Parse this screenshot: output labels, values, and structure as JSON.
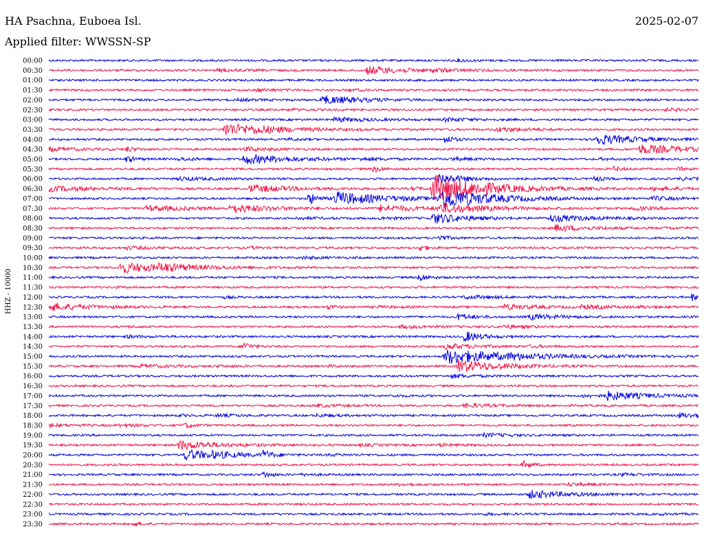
{
  "header": {
    "station": "HA Psachna, Euboea Isl.",
    "date": "2025-02-07",
    "filter_label": "Applied filter: WWSSN-SP"
  },
  "chart_data": {
    "type": "line",
    "title": "HA Psachna, Euboea Isl.",
    "ylabel": "HHZ - 10000",
    "xlabel": "",
    "trace_colors": [
      "#0000dd",
      "#ee1144"
    ],
    "traces": [
      {
        "label": "00:00",
        "events": [
          [
            0.63,
            0.5,
            0.2
          ]
        ]
      },
      {
        "label": "00:30",
        "events": [
          [
            0.49,
            1.8,
            0.5
          ],
          [
            0.26,
            0.6,
            0.3
          ],
          [
            0.59,
            0.5,
            0.3
          ]
        ]
      },
      {
        "label": "01:00",
        "events": []
      },
      {
        "label": "01:30",
        "events": [
          [
            0.32,
            0.5,
            0.3
          ],
          [
            0.46,
            0.4,
            0.2
          ]
        ]
      },
      {
        "label": "02:00",
        "events": [
          [
            0.42,
            2.0,
            0.5
          ],
          [
            0.29,
            0.4,
            0.3
          ]
        ]
      },
      {
        "label": "02:30",
        "events": [
          [
            0.37,
            0.4,
            0.2
          ],
          [
            0.95,
            0.5,
            0.3
          ]
        ]
      },
      {
        "label": "03:00",
        "events": [
          [
            0.44,
            1.0,
            0.4
          ],
          [
            0.61,
            0.8,
            0.3
          ]
        ]
      },
      {
        "label": "03:30",
        "events": [
          [
            0.27,
            3.0,
            0.6
          ],
          [
            0.69,
            1.0,
            0.4
          ],
          [
            0.32,
            0.5,
            0.3
          ]
        ]
      },
      {
        "label": "04:00",
        "events": [
          [
            0.84,
            2.5,
            0.5
          ],
          [
            0.61,
            2.0,
            0.1
          ],
          [
            0.37,
            0.4,
            0.2
          ]
        ]
      },
      {
        "label": "04:30",
        "events": [
          [
            0.0,
            0.8,
            0.4
          ],
          [
            0.91,
            2.2,
            0.6
          ],
          [
            0.3,
            1.0,
            0.3
          ],
          [
            0.12,
            1.2,
            0.1
          ]
        ]
      },
      {
        "label": "05:00",
        "events": [
          [
            0.3,
            2.2,
            0.6
          ],
          [
            0.2,
            0.6,
            0.3
          ],
          [
            0.12,
            1.5,
            0.1
          ],
          [
            0.48,
            0.5,
            0.3
          ],
          [
            0.62,
            0.6,
            0.3
          ],
          [
            0.85,
            0.4,
            0.2
          ]
        ]
      },
      {
        "label": "05:30",
        "events": [
          [
            0.5,
            1.5,
            0.1
          ],
          [
            0.87,
            1.0,
            0.1
          ],
          [
            0.97,
            0.8,
            0.1
          ]
        ]
      },
      {
        "label": "06:00",
        "events": [
          [
            0.2,
            0.8,
            0.4
          ],
          [
            0.6,
            2.5,
            0.3
          ],
          [
            0.84,
            1.2,
            0.1
          ],
          [
            0.97,
            0.5,
            0.3
          ]
        ]
      },
      {
        "label": "06:30",
        "events": [
          [
            0.0,
            1.2,
            0.6
          ],
          [
            0.59,
            7.0,
            0.6
          ],
          [
            0.31,
            1.8,
            0.5
          ],
          [
            0.66,
            0.6,
            0.4
          ],
          [
            0.93,
            0.7,
            0.4
          ],
          [
            0.56,
            0.8,
            0.1
          ]
        ]
      },
      {
        "label": "07:00",
        "events": [
          [
            0.44,
            3.2,
            0.6
          ],
          [
            0.4,
            3.0,
            0.1
          ],
          [
            0.6,
            5.0,
            0.6
          ],
          [
            0.93,
            0.8,
            0.3
          ]
        ]
      },
      {
        "label": "07:30",
        "events": [
          [
            0.15,
            1.2,
            0.6
          ],
          [
            0.28,
            1.8,
            0.5
          ],
          [
            0.51,
            1.5,
            0.5
          ],
          [
            0.6,
            2.0,
            0.6
          ],
          [
            0.9,
            0.7,
            0.3
          ]
        ]
      },
      {
        "label": "08:00",
        "events": [
          [
            0.77,
            1.5,
            0.5
          ],
          [
            0.38,
            0.5,
            0.3
          ],
          [
            0.51,
            0.5,
            0.3
          ],
          [
            0.59,
            2.5,
            0.4
          ]
        ]
      },
      {
        "label": "08:30",
        "events": [
          [
            0.78,
            1.5,
            0.4
          ],
          [
            0.95,
            0.4,
            0.2
          ]
        ]
      },
      {
        "label": "09:00",
        "events": [
          [
            0.6,
            1.5,
            0.1
          ]
        ]
      },
      {
        "label": "09:30",
        "events": [
          [
            0.12,
            0.7,
            0.3
          ],
          [
            0.31,
            0.5,
            0.1
          ],
          [
            0.57,
            1.5,
            0.1
          ]
        ]
      },
      {
        "label": "10:00",
        "events": [
          [
            0.39,
            0.5,
            0.3
          ]
        ]
      },
      {
        "label": "10:30",
        "events": [
          [
            0.11,
            2.5,
            0.6
          ],
          [
            0.17,
            1.2,
            0.4
          ]
        ]
      },
      {
        "label": "11:00",
        "events": [
          [
            0.57,
            2.0,
            0.1
          ]
        ]
      },
      {
        "label": "11:30",
        "events": [
          [
            0.1,
            0.2,
            0.3
          ]
        ]
      },
      {
        "label": "12:00",
        "events": [
          [
            0.27,
            0.5,
            0.1
          ],
          [
            0.64,
            0.8,
            0.4
          ],
          [
            0.99,
            1.5,
            0.1
          ]
        ]
      },
      {
        "label": "12:30",
        "events": [
          [
            0.0,
            1.8,
            0.5
          ],
          [
            0.43,
            1.0,
            0.1
          ],
          [
            0.7,
            1.2,
            0.4
          ],
          [
            0.82,
            0.8,
            0.4
          ],
          [
            0.5,
            0.4,
            0.3
          ],
          [
            0.91,
            0.4,
            0.2
          ]
        ]
      },
      {
        "label": "13:00",
        "events": [
          [
            0.74,
            1.2,
            0.4
          ],
          [
            0.63,
            1.5,
            0.2
          ]
        ]
      },
      {
        "label": "13:30",
        "events": [
          [
            0.54,
            0.6,
            0.4
          ],
          [
            0.7,
            0.7,
            0.3
          ],
          [
            0.12,
            0.3,
            0.2
          ]
        ]
      },
      {
        "label": "14:00",
        "events": [
          [
            0.12,
            0.5,
            0.3
          ],
          [
            0.64,
            2.5,
            0.2
          ]
        ]
      },
      {
        "label": "14:30",
        "events": [
          [
            0.3,
            2.0,
            0.1
          ],
          [
            0.61,
            1.2,
            0.4
          ],
          [
            0.74,
            0.4,
            0.2
          ]
        ]
      },
      {
        "label": "15:00",
        "events": [
          [
            0.61,
            3.5,
            0.8
          ],
          [
            0.71,
            0.6,
            0.3
          ]
        ]
      },
      {
        "label": "15:30",
        "events": [
          [
            0.14,
            0.7,
            0.4
          ],
          [
            0.26,
            0.4,
            0.2
          ],
          [
            0.63,
            3.0,
            0.5
          ],
          [
            0.43,
            0.4,
            0.2
          ]
        ]
      },
      {
        "label": "16:00",
        "events": [
          [
            0.62,
            0.8,
            0.3
          ]
        ]
      },
      {
        "label": "16:30",
        "events": []
      },
      {
        "label": "17:00",
        "events": [
          [
            0.82,
            0.6,
            0.4
          ],
          [
            0.86,
            1.8,
            0.5
          ],
          [
            0.53,
            0.4,
            0.2
          ]
        ]
      },
      {
        "label": "17:30",
        "events": [
          [
            0.41,
            0.6,
            0.3
          ],
          [
            0.64,
            0.8,
            0.4
          ]
        ]
      },
      {
        "label": "18:00",
        "events": [
          [
            0.97,
            1.0,
            0.4
          ],
          [
            0.26,
            0.5,
            0.3
          ],
          [
            0.41,
            0.5,
            0.3
          ],
          [
            0.2,
            0.4,
            0.2
          ]
        ]
      },
      {
        "label": "18:30",
        "events": [
          [
            0.0,
            0.6,
            0.3
          ],
          [
            0.11,
            0.5,
            0.3
          ],
          [
            0.21,
            1.2,
            0.1
          ]
        ]
      },
      {
        "label": "19:00",
        "events": [
          [
            0.67,
            0.8,
            0.3
          ]
        ]
      },
      {
        "label": "19:30",
        "events": [
          [
            0.2,
            2.0,
            0.5
          ],
          [
            0.48,
            0.4,
            0.3
          ],
          [
            0.6,
            0.5,
            0.3
          ]
        ]
      },
      {
        "label": "20:00",
        "events": [
          [
            0.21,
            2.5,
            0.4
          ],
          [
            0.25,
            0.8,
            0.4
          ],
          [
            0.33,
            2.0,
            0.1
          ],
          [
            0.43,
            0.4,
            0.3
          ]
        ]
      },
      {
        "label": "20:30",
        "events": [
          [
            0.73,
            2.0,
            0.1
          ]
        ]
      },
      {
        "label": "21:00",
        "events": [
          [
            0.33,
            1.5,
            0.1
          ],
          [
            0.39,
            0.4,
            0.2
          ],
          [
            0.88,
            0.5,
            0.3
          ]
        ]
      },
      {
        "label": "21:30",
        "events": [
          [
            0.54,
            0.6,
            0.2
          ],
          [
            0.8,
            0.6,
            0.3
          ]
        ]
      },
      {
        "label": "22:00",
        "events": [
          [
            0.74,
            1.8,
            0.5
          ]
        ]
      },
      {
        "label": "22:30",
        "events": []
      },
      {
        "label": "23:00",
        "events": [
          [
            0.67,
            0.3,
            0.3
          ],
          [
            0.94,
            0.3,
            0.2
          ]
        ]
      },
      {
        "label": "23:30",
        "events": [
          [
            0.13,
            1.0,
            0.1
          ]
        ]
      }
    ]
  }
}
